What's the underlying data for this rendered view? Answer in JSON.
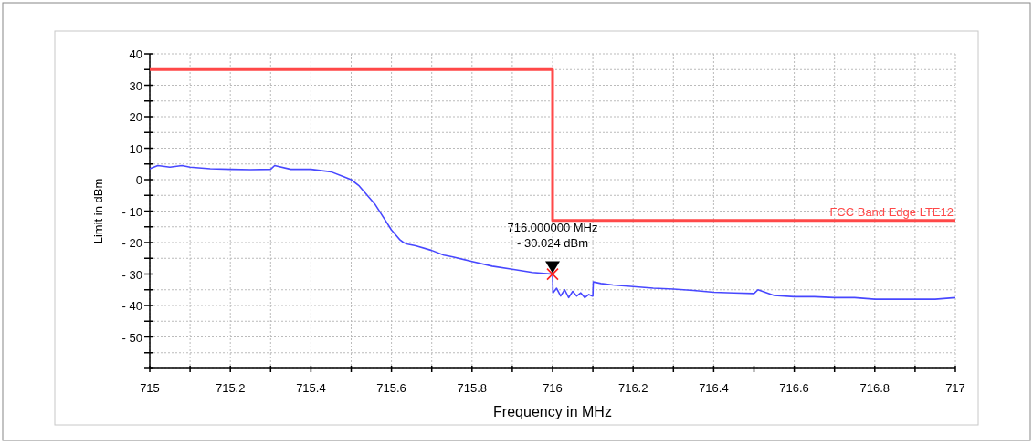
{
  "chart_data": {
    "type": "line",
    "xlabel": "Frequency in MHz",
    "ylabel": "Limit in dBm",
    "xlim": [
      715,
      717
    ],
    "xticks": [
      715,
      {
        "value": 715.1,
        "label": null
      },
      715.2,
      {
        "value": 715.3,
        "label": null
      },
      715.4,
      {
        "value": 715.5,
        "label": null
      },
      715.6,
      {
        "value": 715.7,
        "label": null
      },
      715.8,
      {
        "value": 715.9,
        "label": null
      },
      716,
      {
        "value": 716.1,
        "label": null
      },
      716.2,
      {
        "value": 716.3,
        "label": null
      },
      716.4,
      {
        "value": 716.5,
        "label": null
      },
      716.6,
      {
        "value": 716.7,
        "label": null
      },
      716.8,
      {
        "value": 716.9,
        "label": null
      },
      717
    ],
    "ylim": [
      -60,
      40
    ],
    "yticks": [
      {
        "value": -60,
        "label": null
      },
      {
        "value": -55,
        "label": null
      },
      {
        "value": -50,
        "label": "- 50"
      },
      {
        "value": -45,
        "label": null
      },
      {
        "value": -40,
        "label": "- 40"
      },
      {
        "value": -35,
        "label": null
      },
      {
        "value": -30,
        "label": "- 30"
      },
      {
        "value": -25,
        "label": null
      },
      {
        "value": -20,
        "label": "- 20"
      },
      {
        "value": -15,
        "label": null
      },
      {
        "value": -10,
        "label": "- 10"
      },
      {
        "value": -5,
        "label": null
      },
      0,
      {
        "value": 5,
        "label": null
      },
      10,
      {
        "value": 15,
        "label": null
      },
      20,
      {
        "value": 25,
        "label": null
      },
      30,
      {
        "value": 35,
        "label": null
      },
      40
    ],
    "grid": true,
    "series": [
      {
        "name": "FCC Band Edge LTE12",
        "color": "#ff4848",
        "x": [
          715,
          716,
          716,
          717
        ],
        "values": [
          35,
          35,
          -13,
          -13
        ]
      },
      {
        "color": "#4848ff",
        "x": [
          715,
          715.02,
          715.05,
          715.08,
          715.1,
          715.15,
          715.2,
          715.25,
          715.3,
          715.31,
          715.35,
          715.4,
          715.45,
          715.48,
          715.5,
          715.52,
          715.54,
          715.56,
          715.58,
          715.6,
          715.62,
          715.63,
          715.64,
          715.66,
          715.7,
          715.73,
          715.75,
          715.8,
          715.85,
          715.9,
          715.95,
          716,
          716.001,
          716.01,
          716.02,
          716.03,
          716.04,
          716.05,
          716.06,
          716.07,
          716.08,
          716.09,
          716.099,
          716.1,
          716.101,
          716.12,
          716.15,
          716.2,
          716.25,
          716.3,
          716.35,
          716.4,
          716.45,
          716.5,
          716.51,
          716.55,
          716.6,
          716.65,
          716.7,
          716.75,
          716.8,
          716.85,
          716.9,
          716.95,
          717
        ],
        "values": [
          3.5,
          4.5,
          4,
          4.5,
          4,
          3.5,
          3.3,
          3.2,
          3.3,
          4.5,
          3.3,
          3.3,
          2.5,
          1,
          0,
          -2,
          -5,
          -8,
          -12,
          -16,
          -19,
          -20,
          -20.5,
          -21,
          -22.5,
          -24,
          -24.5,
          -26,
          -27.5,
          -28.5,
          -29.5,
          -30.024,
          -36,
          -34.5,
          -37,
          -35,
          -37.5,
          -35.5,
          -37,
          -36,
          -37.5,
          -36.5,
          -37,
          -37,
          -32.5,
          -33,
          -33.5,
          -34,
          -34.5,
          -34.8,
          -35.2,
          -35.8,
          -36,
          -36.2,
          -35,
          -36.8,
          -37.2,
          -37.2,
          -37.5,
          -37.5,
          -38,
          -38,
          -38,
          -38,
          -37.5
        ]
      },
      {
        "type": "scatter",
        "marker": "cross",
        "color": "#ff2020",
        "x": [
          716
        ],
        "values": [
          -30.024
        ]
      }
    ],
    "annotations": [
      {
        "text": "716.000000 MHz\n- 30.024 dBm",
        "x": 716,
        "y": -30.024
      }
    ]
  }
}
